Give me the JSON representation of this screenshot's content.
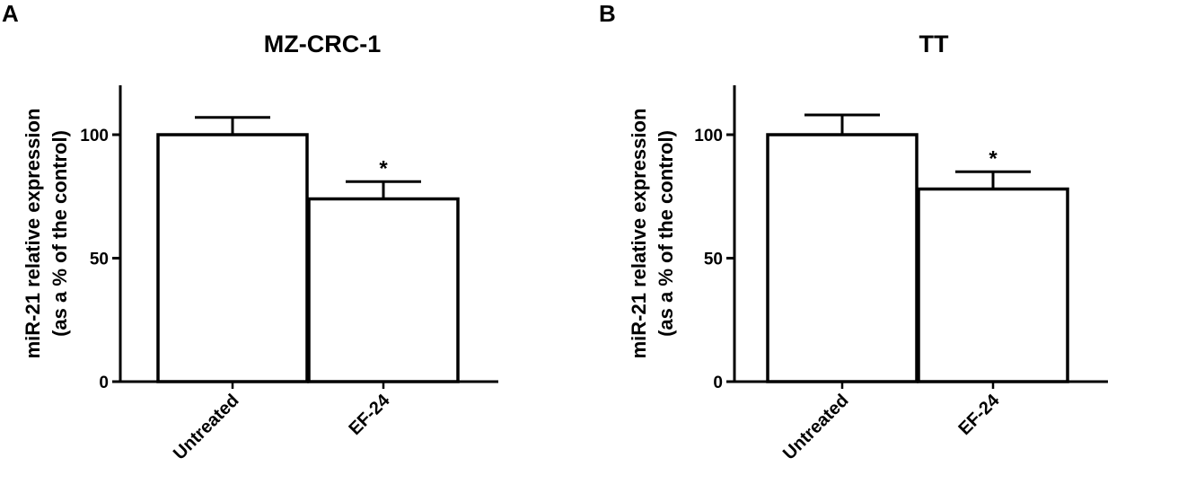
{
  "panels": [
    {
      "letter": "A"
    },
    {
      "letter": "B"
    }
  ],
  "chart_data": [
    {
      "type": "bar",
      "title": "MZ-CRC-1",
      "xlabel": "",
      "ylabel_lines": [
        "miR-21 relative expression",
        "(as a % of the control)"
      ],
      "categories": [
        "Untreated",
        "EF-24"
      ],
      "values": [
        100,
        74
      ],
      "error_upper": [
        107,
        81
      ],
      "significance": [
        "",
        "*"
      ],
      "ylim": [
        0,
        120
      ],
      "yticks": [
        0,
        50,
        100
      ],
      "ytick_labels": [
        "0",
        "50",
        "100"
      ],
      "bar_fill": "#ffffff",
      "stroke_color": "#000000",
      "grid": false,
      "legend": "none"
    },
    {
      "type": "bar",
      "title": "TT",
      "xlabel": "",
      "ylabel_lines": [
        "miR-21 relative expression",
        "(as a % of the control)"
      ],
      "categories": [
        "Untreated",
        "EF-24"
      ],
      "values": [
        100,
        78
      ],
      "error_upper": [
        108,
        85
      ],
      "significance": [
        "",
        "*"
      ],
      "ylim": [
        0,
        120
      ],
      "yticks": [
        0,
        50,
        100
      ],
      "ytick_labels": [
        "0",
        "50",
        "100"
      ],
      "bar_fill": "#ffffff",
      "stroke_color": "#000000",
      "grid": false,
      "legend": "none"
    }
  ]
}
